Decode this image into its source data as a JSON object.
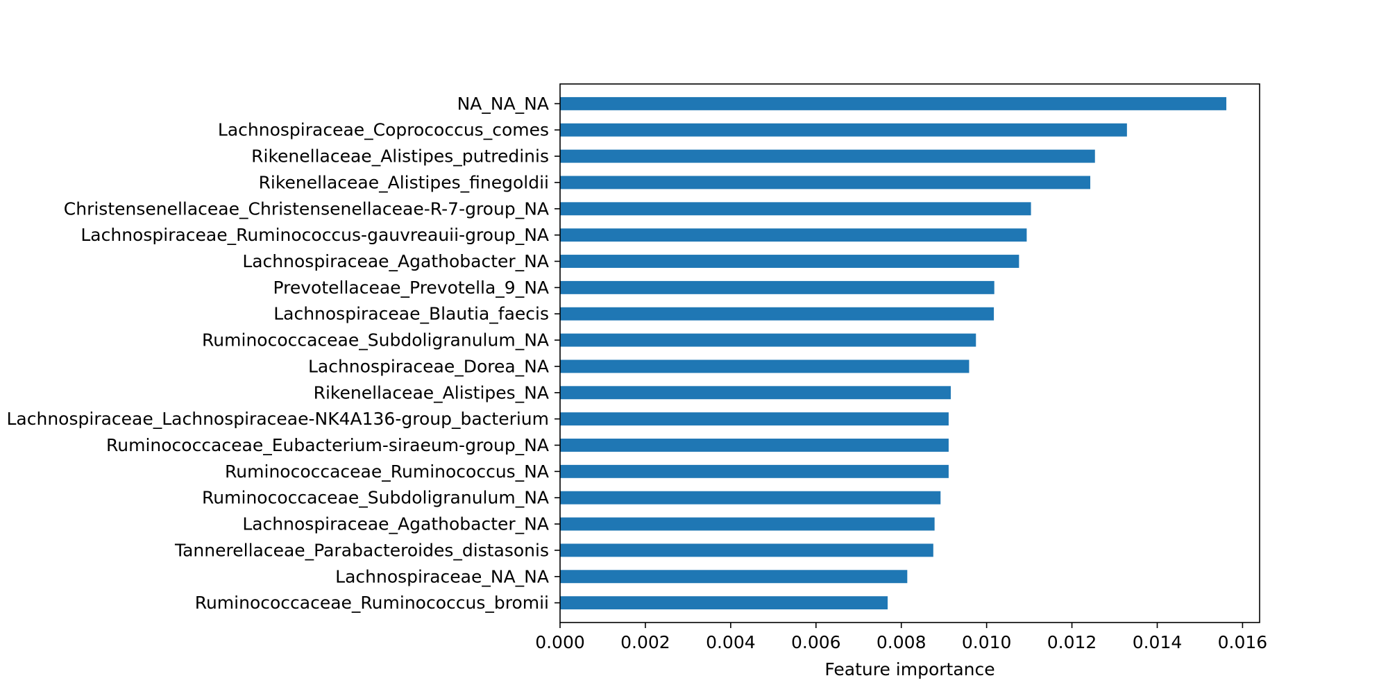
{
  "chart_data": {
    "type": "bar",
    "orientation": "horizontal",
    "categories": [
      "NA_NA_NA",
      "Lachnospiraceae_Coprococcus_comes",
      "Rikenellaceae_Alistipes_putredinis",
      "Rikenellaceae_Alistipes_finegoldii",
      "Christensenellaceae_Christensenellaceae-R-7-group_NA",
      "Lachnospiraceae_Ruminococcus-gauvreauii-group_NA",
      "Lachnospiraceae_Agathobacter_NA",
      "Prevotellaceae_Prevotella_9_NA",
      "Lachnospiraceae_Blautia_faecis",
      "Ruminococcaceae_Subdoligranulum_NA",
      "Lachnospiraceae_Dorea_NA",
      "Rikenellaceae_Alistipes_NA",
      "Lachnospiraceae_Lachnospiraceae-NK4A136-group_bacterium",
      "Ruminococcaceae_Eubacterium-siraeum-group_NA",
      "Ruminococcaceae_Ruminococcus_NA",
      "Ruminococcaceae_Subdoligranulum_NA",
      "Lachnospiraceae_Agathobacter_NA",
      "Tannerellaceae_Parabacteroides_distasonis",
      "Lachnospiraceae_NA_NA",
      "Ruminococcaceae_Ruminococcus_bromii"
    ],
    "values": [
      0.01562,
      0.01329,
      0.01254,
      0.01243,
      0.01104,
      0.01094,
      0.01076,
      0.01018,
      0.01017,
      0.00975,
      0.00959,
      0.00916,
      0.00911,
      0.00911,
      0.00911,
      0.00892,
      0.00878,
      0.00875,
      0.00814,
      0.00768
    ],
    "title": "",
    "xlabel": "Feature importance",
    "ylabel": "",
    "xlim": [
      0,
      0.0164
    ],
    "xticks": [
      "0.000",
      "0.002",
      "0.004",
      "0.006",
      "0.008",
      "0.010",
      "0.012",
      "0.014",
      "0.016"
    ],
    "grid": false,
    "bar_color": "#1f77b4"
  }
}
